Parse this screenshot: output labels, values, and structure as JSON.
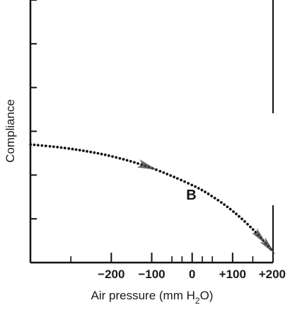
{
  "chart_data": {
    "type": "line",
    "xlabel": "Air pressure (mm H2O)",
    "xlabel_parts": {
      "pre": "Air pressure (mm H",
      "sub": "2",
      "post": "O)"
    },
    "ylabel": "Compliance",
    "xlim": [
      -400,
      200
    ],
    "x_ticks_major": [
      -200,
      -100,
      0,
      100,
      200
    ],
    "x_ticks_minor": [
      -300,
      -50,
      -25,
      25,
      50,
      150
    ],
    "x_tick_labels": [
      {
        "value": -200,
        "text": "−200"
      },
      {
        "value": -100,
        "text": "−100"
      },
      {
        "value": 0,
        "text": "0"
      },
      {
        "value": 100,
        "text": "+100"
      },
      {
        "value": 200,
        "text": "+200"
      }
    ],
    "y_ticks_count": 6,
    "grid": false,
    "series": [
      {
        "name": "B",
        "style": "dotted",
        "x": [
          -400,
          -300,
          -200,
          -100,
          0,
          50,
          100,
          150,
          200
        ],
        "y": [
          2.7,
          2.6,
          2.43,
          2.16,
          1.77,
          1.51,
          1.18,
          0.76,
          0.25
        ]
      }
    ],
    "annotations": [
      {
        "text": "B",
        "x": -2,
        "y": 1.55
      }
    ],
    "colors": {
      "line": "#111111",
      "axis": "#111111",
      "arrow": "#444444"
    }
  }
}
